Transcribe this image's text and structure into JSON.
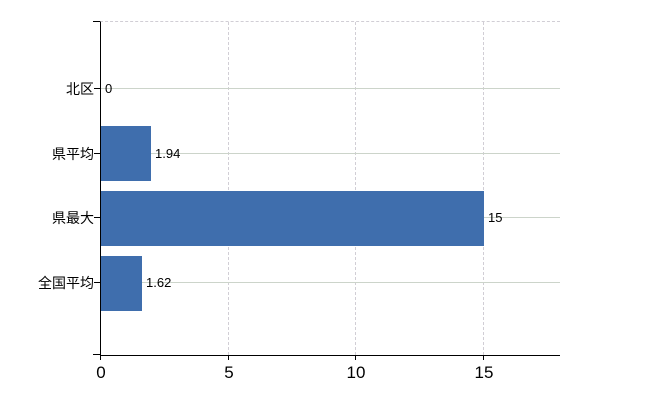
{
  "chart_data": {
    "type": "bar",
    "orientation": "horizontal",
    "title": "",
    "xlabel": "",
    "ylabel": "",
    "categories": [
      "北区",
      "県平均",
      "県最大",
      "全国平均"
    ],
    "values": [
      0,
      1.94,
      15,
      1.62
    ],
    "value_labels": [
      "0",
      "1.94",
      "15",
      "1.62"
    ],
    "x_ticks": [
      0,
      5,
      10,
      15
    ],
    "x_tick_labels": [
      "0",
      "5",
      "10",
      "15"
    ],
    "xlim": [
      0,
      18
    ],
    "grid": true,
    "legend": false,
    "colors": {
      "bar": "#3f6ead",
      "horizontal_grid": "#ccd4ca",
      "vertical_grid": "#d1ced5",
      "axis": "#000000",
      "text": "#000000",
      "background": "#ffffff"
    }
  }
}
